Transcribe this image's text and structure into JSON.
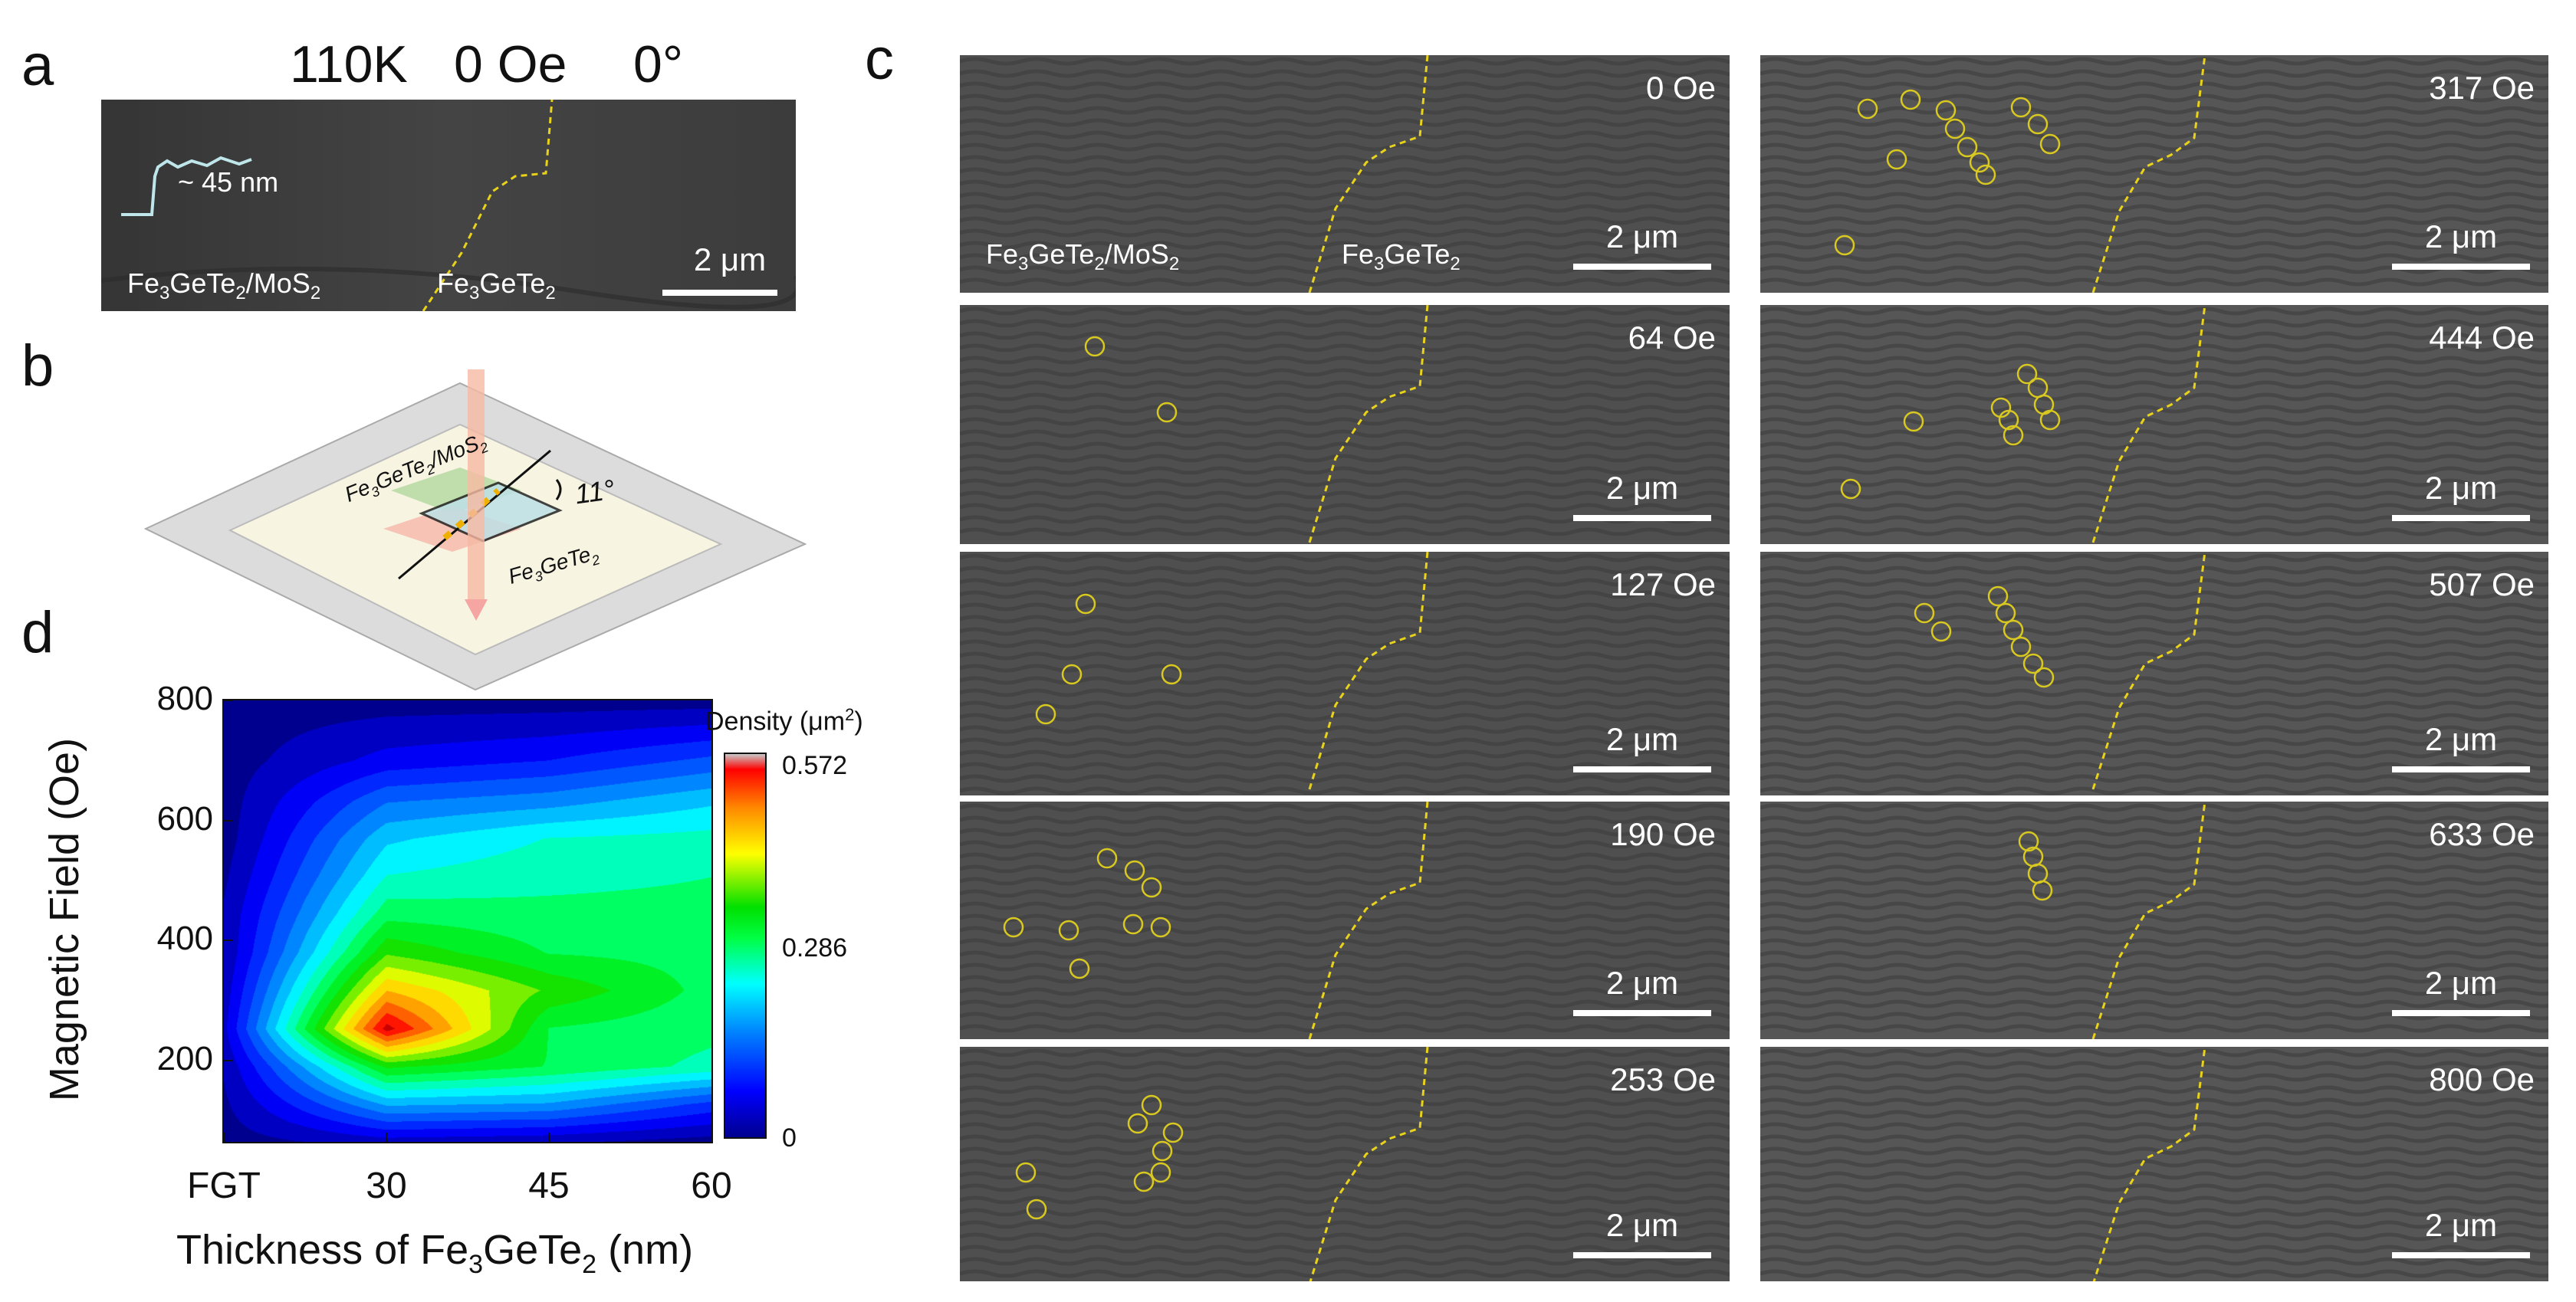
{
  "panel_labels": {
    "a": "a",
    "b": "b",
    "c": "c",
    "d": "d"
  },
  "panel_a": {
    "temperature": "110K",
    "field": "0 Oe",
    "angle": "0°",
    "thickness_inset": "~ 45 nm",
    "region_left": {
      "main": "Fe",
      "s1": "3",
      "mid": "GeTe",
      "s2": "2",
      "tail": "/MoS",
      "s3": "2"
    },
    "region_right": {
      "main": "Fe",
      "s1": "3",
      "mid": "GeTe",
      "s2": "2"
    },
    "scalebar": "2 μm"
  },
  "panel_b": {
    "top_label": {
      "main": "Fe",
      "s1": "3",
      "mid": "GeTe",
      "s2": "2",
      "tail": "/MoS",
      "s3": "2"
    },
    "bottom_label": {
      "main": "Fe",
      "s1": "3",
      "mid": "GeTe",
      "s2": "2"
    },
    "angle": "11°"
  },
  "panel_c": {
    "scalebar": "2 μm",
    "region_left": {
      "main": "Fe",
      "s1": "3",
      "mid": "GeTe",
      "s2": "2",
      "tail": "/MoS",
      "s3": "2"
    },
    "region_right": {
      "main": "Fe",
      "s1": "3",
      "mid": "GeTe",
      "s2": "2"
    },
    "images": [
      {
        "field": "0 Oe"
      },
      {
        "field": "317 Oe"
      },
      {
        "field": "64 Oe"
      },
      {
        "field": "444 Oe"
      },
      {
        "field": "127 Oe"
      },
      {
        "field": "507 Oe"
      },
      {
        "field": "190 Oe"
      },
      {
        "field": "633 Oe"
      },
      {
        "field": "253 Oe"
      },
      {
        "field": "800 Oe"
      }
    ]
  },
  "chart_data": {
    "type": "heatmap",
    "x_tick_labels": [
      "FGT",
      "30",
      "45",
      "60"
    ],
    "x_tick_values": [
      15,
      30,
      45,
      60
    ],
    "y_tick_labels": [
      "200",
      "400",
      "600",
      "800"
    ],
    "y_tick_values": [
      200,
      400,
      600,
      800
    ],
    "xlabel": {
      "main": "Thickness of Fe",
      "s1": "3",
      "mid": "GeTe",
      "s2": "2",
      "tail": " (nm)"
    },
    "ylabel": "Magnetic Field (Oe)",
    "xlim": [
      15,
      60
    ],
    "ylim": [
      64,
      800
    ],
    "colorbar": {
      "title": "Density (μm",
      "title_sup": "2",
      "title_end": ")",
      "max_label": "0.572",
      "mid_label": "0.286",
      "min_label": "0",
      "range": [
        0,
        0.572
      ]
    },
    "x": [
      15,
      30,
      45,
      60
    ],
    "y": [
      64,
      127,
      190,
      253,
      317,
      380,
      444,
      507,
      570,
      633,
      700,
      800
    ],
    "z": [
      [
        0.0,
        0.03,
        0.02,
        0.0
      ],
      [
        0.01,
        0.18,
        0.17,
        0.1
      ],
      [
        0.02,
        0.34,
        0.3,
        0.26
      ],
      [
        0.04,
        0.57,
        0.3,
        0.28
      ],
      [
        0.03,
        0.46,
        0.36,
        0.29
      ],
      [
        0.02,
        0.36,
        0.3,
        0.29
      ],
      [
        0.02,
        0.29,
        0.28,
        0.28
      ],
      [
        0.01,
        0.24,
        0.26,
        0.27
      ],
      [
        0.0,
        0.2,
        0.24,
        0.25
      ],
      [
        0.0,
        0.14,
        0.16,
        0.2
      ],
      [
        0.0,
        0.06,
        0.08,
        0.12
      ],
      [
        0.0,
        0.0,
        0.0,
        0.0
      ]
    ]
  }
}
